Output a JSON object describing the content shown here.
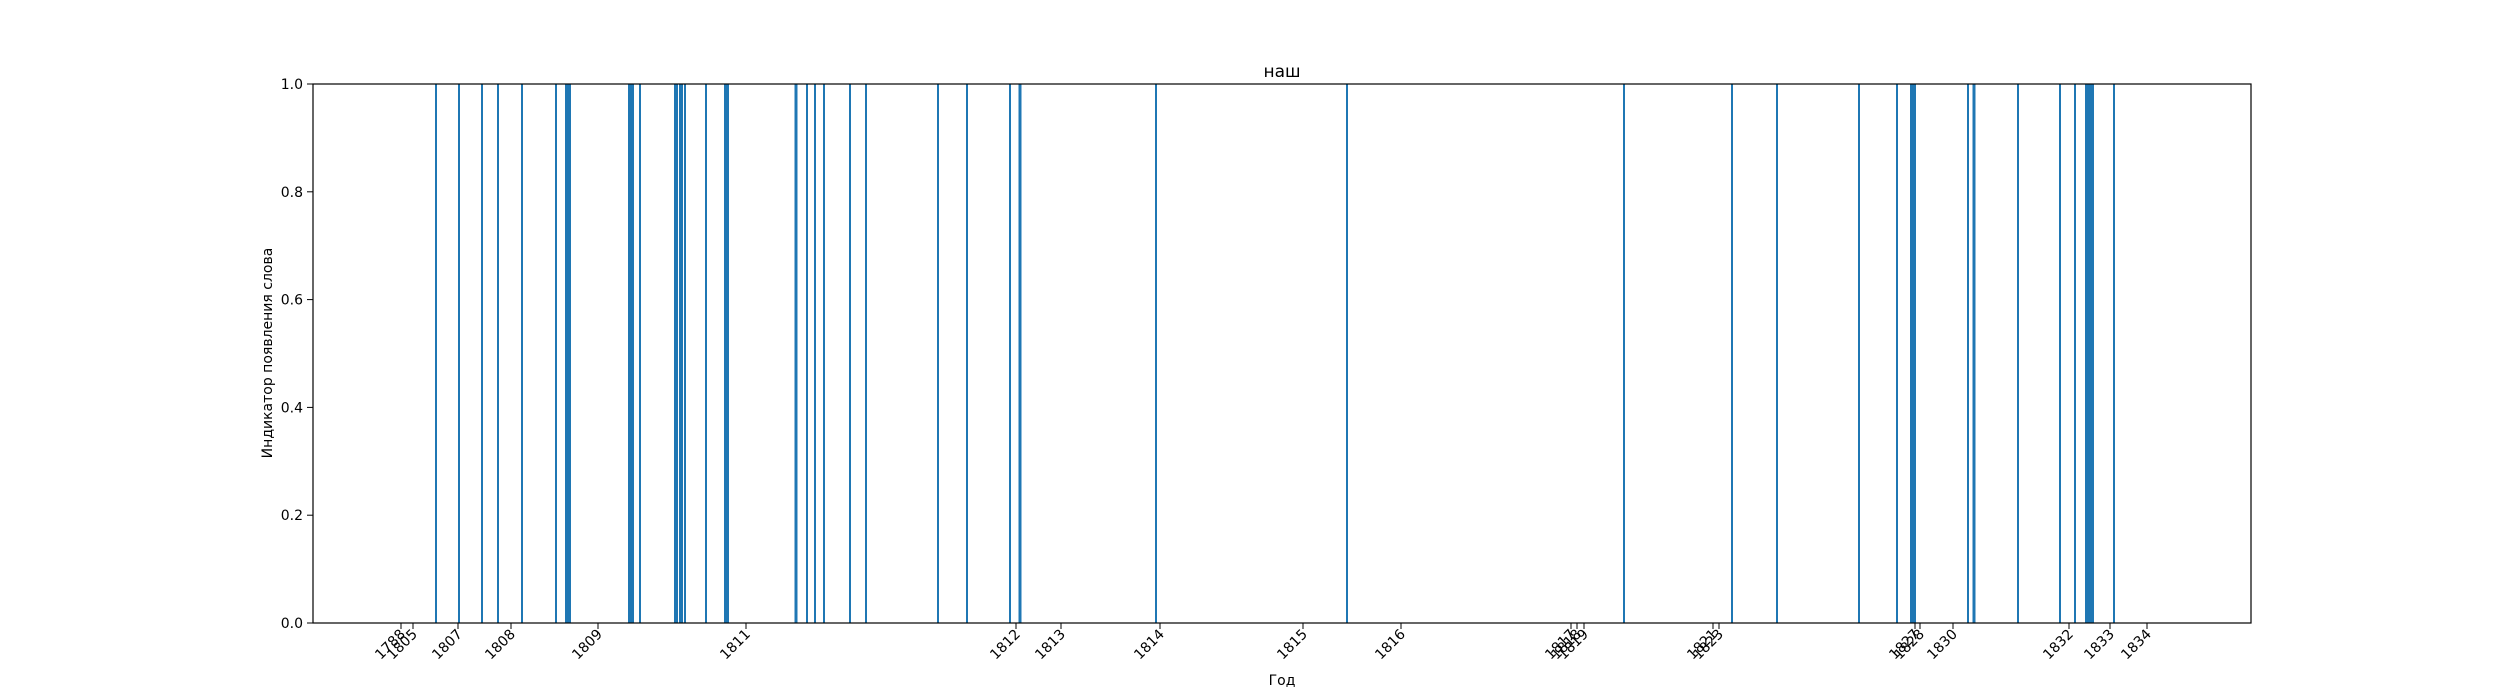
{
  "chart_data": {
    "type": "bar",
    "title": "наш",
    "xlabel": "Год",
    "ylabel": "Индикатор появления слова",
    "ylim": [
      0,
      1
    ],
    "yticks": [
      "0.0",
      "0.2",
      "0.4",
      "0.6",
      "0.8",
      "1.0"
    ],
    "series_color": "#1f77b4",
    "x_tick_labels": [
      "1788",
      "1805",
      "1807",
      "1808",
      "1809",
      "1811",
      "1812",
      "1813",
      "1814",
      "1815",
      "1816",
      "1817",
      "1818",
      "1819",
      "1821",
      "1823",
      "1827",
      "1828",
      "1830",
      "1832",
      "1833",
      "1834"
    ],
    "occurrence_value": 1
  }
}
